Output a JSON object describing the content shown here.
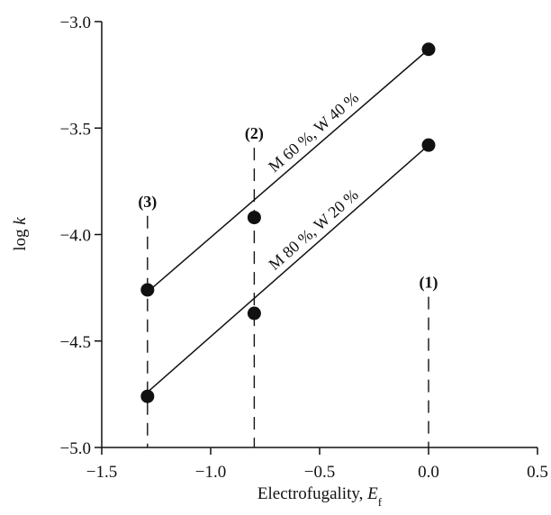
{
  "chart_data": {
    "type": "scatter",
    "title": "",
    "xlabel_main": "Electrofugality, ",
    "xlabel_italic": "E",
    "xlabel_sub": "f",
    "ylabel_main": "log ",
    "ylabel_italic": "k",
    "xlim": [
      -1.5,
      0.5
    ],
    "ylim": [
      -5.0,
      -3.0
    ],
    "xticks": [
      -1.5,
      -1.0,
      -0.5,
      0.0,
      0.5
    ],
    "xtick_labels": [
      "−1.5",
      "−1.0",
      "−0.5",
      "0.0",
      "0.5"
    ],
    "yticks": [
      -5.0,
      -4.5,
      -4.0,
      -3.5,
      -3.0
    ],
    "ytick_labels": [
      "−5.0",
      "−4.5",
      "−4.0",
      "−3.5",
      "−3.0"
    ],
    "grid": false,
    "series": [
      {
        "name": "M 60 %, W 40 %",
        "x": [
          -1.29,
          -0.8,
          0.0
        ],
        "y": [
          -4.26,
          -3.92,
          -3.13
        ],
        "fit": {
          "x": [
            -1.29,
            0.0
          ],
          "y": [
            -4.27,
            -3.13
          ]
        }
      },
      {
        "name": "M 80 %, W 20 %",
        "x": [
          -1.29,
          -0.8,
          0.0
        ],
        "y": [
          -4.76,
          -4.37,
          -3.58
        ],
        "fit": {
          "x": [
            -1.29,
            0.0
          ],
          "y": [
            -4.74,
            -3.58
          ]
        }
      }
    ],
    "annotations": [
      {
        "label": "(1)",
        "x": 0.0,
        "label_y": -4.25,
        "line_top": -3.13,
        "line_bottom": -5.0
      },
      {
        "label": "(2)",
        "x": -0.8,
        "label_y": -3.55,
        "line_top": -3.58,
        "line_bottom": -5.0
      },
      {
        "label": "(3)",
        "x": -1.29,
        "label_y": -3.87,
        "line_top": -3.92,
        "line_bottom": -5.0
      }
    ]
  }
}
